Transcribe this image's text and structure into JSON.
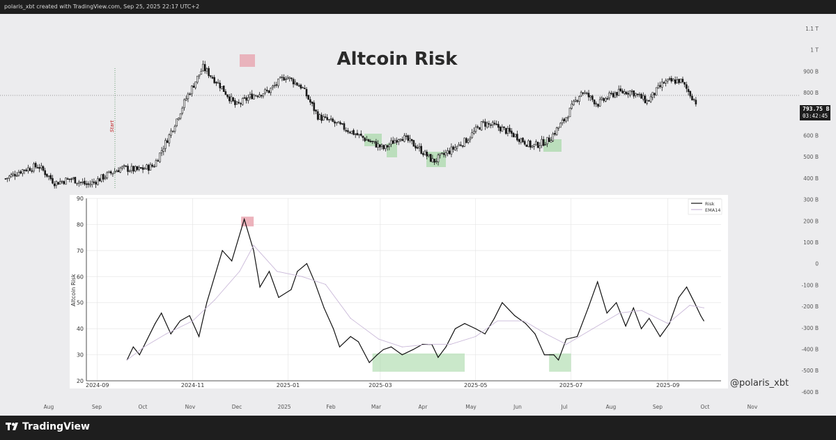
{
  "header": {
    "attribution": "polaris_xbt created with TradingView.com, Sep 25, 2025 22:17 UTC+2"
  },
  "title": "Altcoin Risk",
  "price_badge": {
    "price": "793.75 B",
    "countdown": "03:42:45"
  },
  "watermark": "@polaris_xbt",
  "footer": {
    "brand": "TradingView"
  },
  "annotations": {
    "start_label": "Start"
  },
  "colors": {
    "background": "#ececee",
    "candle": "#1a1a1a",
    "green_zone": "#a6d9a6",
    "red_zone": "#e8a0ab",
    "risk_line": "#111111",
    "ema_line": "#c9b8d8"
  },
  "chart_data": [
    {
      "type": "candlestick",
      "title": "Altcoin Risk",
      "price_axis": {
        "ticks": [
          "1.1 T",
          "1 T",
          "900 B",
          "800 B",
          "700 B",
          "600 B",
          "500 B",
          "400 B",
          "300 B",
          "200 B",
          "100 B",
          "0",
          "-100 B",
          "-200 B",
          "-300 B",
          "-400 B",
          "-500 B",
          "-600 B"
        ],
        "values": [
          1100,
          1000,
          900,
          800,
          700,
          600,
          500,
          400,
          300,
          200,
          100,
          0,
          -100,
          -200,
          -300,
          -400,
          -500,
          -600
        ],
        "current": 793.75
      },
      "time_axis": {
        "ticks": [
          "Aug",
          "Sep",
          "Oct",
          "Nov",
          "Dec",
          "2025",
          "Feb",
          "Mar",
          "Apr",
          "May",
          "Jun",
          "Jul",
          "Aug",
          "Sep",
          "Oct",
          "Nov"
        ]
      },
      "key_points": [
        {
          "t": "Aug",
          "v": 440
        },
        {
          "t": "Aug",
          "v": 480
        },
        {
          "t": "Aug",
          "v": 500
        },
        {
          "t": "Aug",
          "v": 420
        },
        {
          "t": "Sep",
          "v": 440
        },
        {
          "t": "Sep",
          "v": 410
        },
        {
          "t": "Oct",
          "v": 450
        },
        {
          "t": "Oct",
          "v": 490
        },
        {
          "t": "Oct",
          "v": 480
        },
        {
          "t": "Nov",
          "v": 500
        },
        {
          "t": "Nov",
          "v": 650
        },
        {
          "t": "Nov",
          "v": 820
        },
        {
          "t": "Dec",
          "v": 960
        },
        {
          "t": "Dec",
          "v": 880
        },
        {
          "t": "Dec",
          "v": 780
        },
        {
          "t": "2025",
          "v": 830
        },
        {
          "t": "2025",
          "v": 850
        },
        {
          "t": "2025",
          "v": 920
        },
        {
          "t": "2025",
          "v": 870
        },
        {
          "t": "Feb",
          "v": 730
        },
        {
          "t": "Feb",
          "v": 700
        },
        {
          "t": "Feb",
          "v": 660
        },
        {
          "t": "Mar",
          "v": 620
        },
        {
          "t": "Mar",
          "v": 580
        },
        {
          "t": "Mar",
          "v": 640
        },
        {
          "t": "Apr",
          "v": 590
        },
        {
          "t": "Apr",
          "v": 520
        },
        {
          "t": "Apr",
          "v": 570
        },
        {
          "t": "May",
          "v": 620
        },
        {
          "t": "May",
          "v": 700
        },
        {
          "t": "Jun",
          "v": 680
        },
        {
          "t": "Jun",
          "v": 640
        },
        {
          "t": "Jun",
          "v": 590
        },
        {
          "t": "Jul",
          "v": 620
        },
        {
          "t": "Jul",
          "v": 720
        },
        {
          "t": "Jul",
          "v": 850
        },
        {
          "t": "Aug",
          "v": 790
        },
        {
          "t": "Aug",
          "v": 840
        },
        {
          "t": "Aug",
          "v": 850
        },
        {
          "t": "Sep",
          "v": 800
        },
        {
          "t": "Sep",
          "v": 890
        },
        {
          "t": "Sep",
          "v": 900
        },
        {
          "t": "Sep",
          "v": 794
        }
      ]
    },
    {
      "type": "line",
      "xlabel": "",
      "ylabel": "Altcoin Risk",
      "ylim": [
        20,
        90
      ],
      "yticks": [
        20,
        30,
        40,
        50,
        60,
        70,
        80,
        90
      ],
      "xticks": [
        "2024-09",
        "2024-11",
        "2025-01",
        "2025-03",
        "2025-05",
        "2025-07",
        "2025-09"
      ],
      "xlim": [
        "2024-08-25",
        "2025-10-05"
      ],
      "grid": true,
      "legend": "top-right",
      "series": [
        {
          "name": "Risk",
          "x": [
            "2024-09-20",
            "2024-09-24",
            "2024-09-28",
            "2024-10-08",
            "2024-10-12",
            "2024-10-18",
            "2024-10-24",
            "2024-10-30",
            "2024-11-05",
            "2024-11-10",
            "2024-11-15",
            "2024-11-20",
            "2024-11-26",
            "2024-12-02",
            "2024-12-04",
            "2024-12-06",
            "2024-12-10",
            "2024-12-14",
            "2024-12-20",
            "2024-12-26",
            "2025-01-03",
            "2025-01-07",
            "2025-01-13",
            "2025-01-18",
            "2025-01-24",
            "2025-01-30",
            "2025-02-03",
            "2025-02-10",
            "2025-02-15",
            "2025-02-22",
            "2025-02-27",
            "2025-03-03",
            "2025-03-08",
            "2025-03-15",
            "2025-03-22",
            "2025-03-28",
            "2025-04-03",
            "2025-04-07",
            "2025-04-12",
            "2025-04-18",
            "2025-04-24",
            "2025-05-01",
            "2025-05-07",
            "2025-05-13",
            "2025-05-18",
            "2025-05-26",
            "2025-06-02",
            "2025-06-08",
            "2025-06-14",
            "2025-06-20",
            "2025-06-23",
            "2025-06-28",
            "2025-07-05",
            "2025-07-12",
            "2025-07-18",
            "2025-07-24",
            "2025-07-30",
            "2025-08-05",
            "2025-08-10",
            "2025-08-15",
            "2025-08-20",
            "2025-08-27",
            "2025-09-02",
            "2025-09-08",
            "2025-09-13",
            "2025-09-18",
            "2025-09-22",
            "2025-09-24"
          ],
          "values": [
            28,
            33,
            30,
            42,
            46,
            38,
            43,
            45,
            37,
            50,
            60,
            70,
            66,
            78,
            82,
            78,
            70,
            56,
            62,
            52,
            55,
            62,
            65,
            58,
            48,
            40,
            33,
            37,
            35,
            27,
            30,
            32,
            33,
            30,
            32,
            34,
            34,
            29,
            33,
            40,
            42,
            40,
            38,
            44,
            50,
            45,
            42,
            38,
            30,
            30,
            28,
            36,
            37,
            48,
            58,
            46,
            50,
            41,
            48,
            40,
            44,
            37,
            42,
            52,
            56,
            50,
            45,
            43
          ],
          "color": "#111111"
        },
        {
          "name": "EMA14",
          "x": [
            "2024-09-20",
            "2024-10-01",
            "2024-10-15",
            "2024-11-01",
            "2024-11-15",
            "2024-12-01",
            "2024-12-10",
            "2024-12-25",
            "2025-01-10",
            "2025-01-25",
            "2025-02-10",
            "2025-02-28",
            "2025-03-15",
            "2025-04-01",
            "2025-04-15",
            "2025-05-01",
            "2025-05-15",
            "2025-06-01",
            "2025-06-15",
            "2025-06-28",
            "2025-07-15",
            "2025-08-01",
            "2025-08-15",
            "2025-09-01",
            "2025-09-15",
            "2025-09-24"
          ],
          "values": [
            28,
            33,
            38,
            43,
            51,
            62,
            72,
            62,
            60,
            57,
            44,
            36,
            33,
            34,
            34,
            37,
            43,
            43,
            38,
            34,
            40,
            46,
            47,
            42,
            49,
            48
          ],
          "color": "#c9b8d8"
        }
      ]
    }
  ]
}
